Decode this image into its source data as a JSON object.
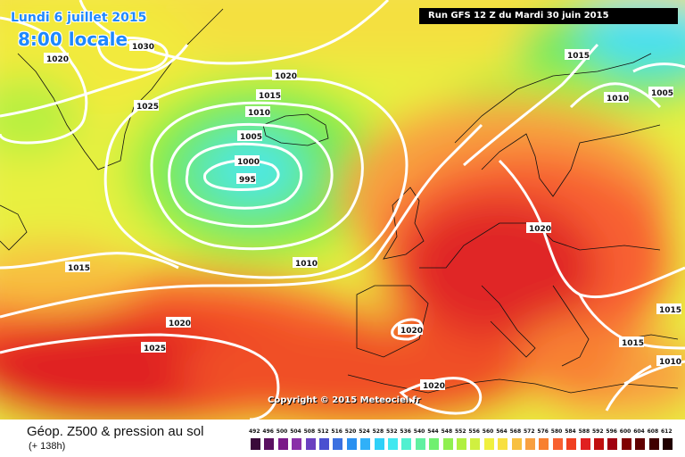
{
  "header": {
    "date": "Lundi 6 juillet 2015",
    "hour": "8:00 locale",
    "run": "Run GFS 12 Z du Mardi 30 juin 2015"
  },
  "copyright": "Copyright © 2015 Meteociel.fr",
  "footer": {
    "title": "Géop. Z500 & pression au sol",
    "range": "(+ 138h)"
  },
  "isobar_labels": [
    {
      "id": "l1020a",
      "text": "1020"
    },
    {
      "id": "l1030",
      "text": "1030"
    },
    {
      "id": "l1025a",
      "text": "1025"
    },
    {
      "id": "l1020b",
      "text": "1020"
    },
    {
      "id": "l1015a",
      "text": "1015"
    },
    {
      "id": "l1010a",
      "text": "1010"
    },
    {
      "id": "l1005a",
      "text": "1005"
    },
    {
      "id": "l1000",
      "text": "1000"
    },
    {
      "id": "l995",
      "text": "995"
    },
    {
      "id": "l1015b",
      "text": "1015"
    },
    {
      "id": "l1010b",
      "text": "1010"
    },
    {
      "id": "l1020c",
      "text": "1020"
    },
    {
      "id": "l1025b",
      "text": "1025"
    },
    {
      "id": "l1020d",
      "text": "1020"
    },
    {
      "id": "l1020e",
      "text": "1020"
    },
    {
      "id": "l1020f",
      "text": "1020"
    },
    {
      "id": "l1015c",
      "text": "1015"
    },
    {
      "id": "l1010c",
      "text": "1010"
    },
    {
      "id": "l1005b",
      "text": "1005"
    },
    {
      "id": "l1015d",
      "text": "1015"
    },
    {
      "id": "l1015e",
      "text": "1015"
    },
    {
      "id": "l1010d",
      "text": "1010"
    }
  ],
  "legend": {
    "ticks": [
      "492",
      "496",
      "500",
      "504",
      "508",
      "512",
      "516",
      "520",
      "524",
      "528",
      "532",
      "536",
      "540",
      "544",
      "548",
      "552",
      "556",
      "560",
      "564",
      "568",
      "572",
      "576",
      "580",
      "584",
      "588",
      "592",
      "596",
      "600",
      "604",
      "608",
      "612"
    ],
    "colors": [
      "#3a0a3a",
      "#5a1060",
      "#7a1a88",
      "#8a30a8",
      "#6a40c0",
      "#4a50d0",
      "#3a70e0",
      "#2a90f0",
      "#30b0f8",
      "#30d0f8",
      "#40e8f0",
      "#50f0d0",
      "#60f0a0",
      "#70f070",
      "#90f050",
      "#b0f040",
      "#d0f040",
      "#f0f040",
      "#f8e040",
      "#f8c040",
      "#f8a040",
      "#f88030",
      "#f86030",
      "#f04020",
      "#e02020",
      "#c01010",
      "#a00010",
      "#800000",
      "#600000",
      "#400000",
      "#200000"
    ]
  }
}
